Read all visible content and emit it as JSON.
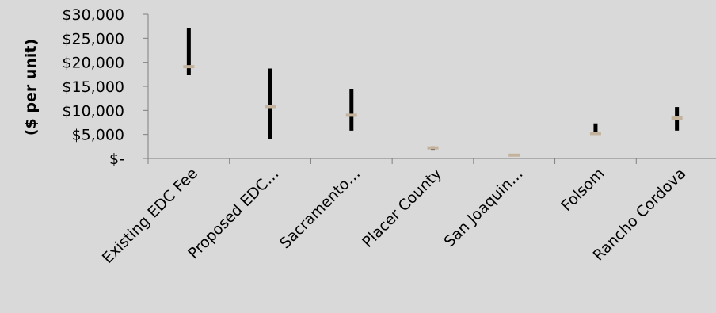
{
  "chart_data": {
    "type": "range",
    "title": "",
    "xlabel": "",
    "ylabel": "($ per unit)",
    "ylim": [
      0,
      30000
    ],
    "yticks": [
      {
        "value": 30000,
        "label": "$30,000"
      },
      {
        "value": 25000,
        "label": "$25,000"
      },
      {
        "value": 20000,
        "label": "$20,000"
      },
      {
        "value": 15000,
        "label": "$15,000"
      },
      {
        "value": 10000,
        "label": "$10,000"
      },
      {
        "value": 5000,
        "label": "$5,000"
      },
      {
        "value": 0,
        "label": "$-"
      }
    ],
    "categories": [
      "Existing EDC Fee",
      "Proposed EDC…",
      "Sacramento…",
      "Placer County",
      "San Joaquin…",
      "Folsom",
      "Rancho Cordova"
    ],
    "series": [
      {
        "name": "",
        "high": [
          27200,
          18700,
          14500,
          2500,
          800,
          7300,
          10700
        ]
      },
      {
        "name": "",
        "low": [
          17300,
          4000,
          5800,
          1800,
          500,
          5000,
          5800
        ]
      },
      {
        "name": "",
        "mid": [
          19100,
          10800,
          9000,
          2200,
          700,
          5200,
          8400
        ]
      }
    ],
    "colors": {
      "range": "#000000",
      "mid": "#c4b39c",
      "axis": "#7f7f7f"
    },
    "grid": false,
    "legend": "none"
  }
}
